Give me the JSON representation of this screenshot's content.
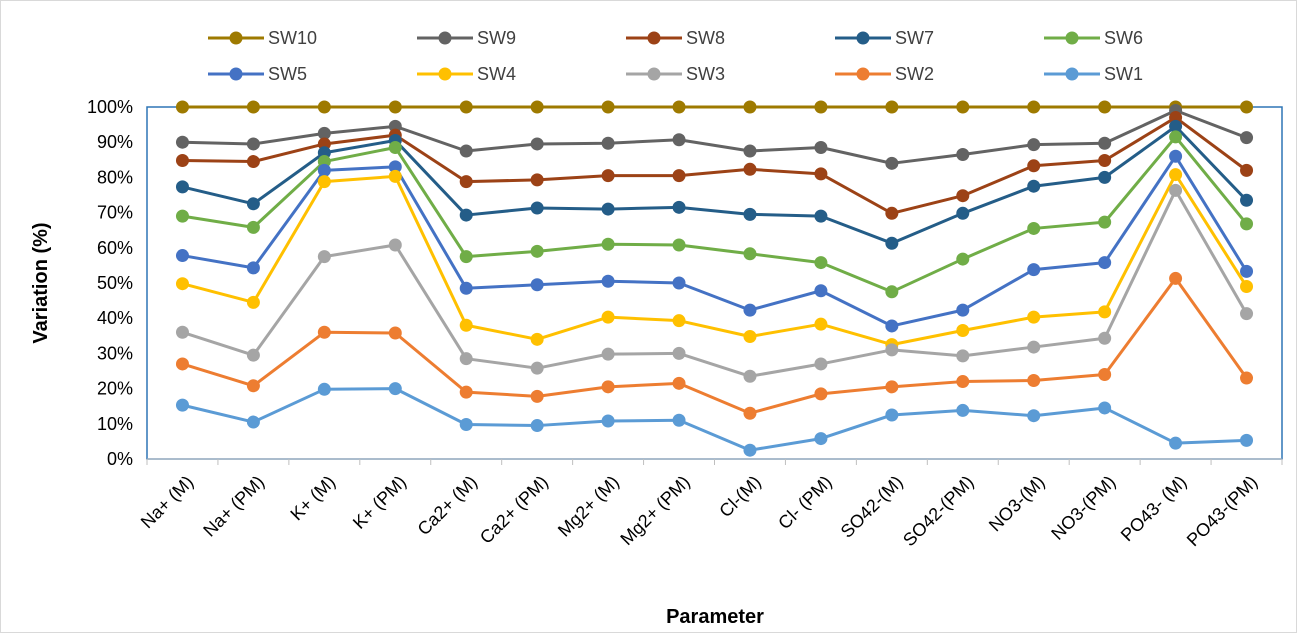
{
  "chart_data": {
    "type": "line",
    "title": "",
    "xlabel": "Parameter",
    "ylabel": "Variation (%)",
    "ylim": [
      0,
      100
    ],
    "yticks": [
      "0%",
      "10%",
      "20%",
      "30%",
      "40%",
      "50%",
      "60%",
      "70%",
      "80%",
      "90%",
      "100%"
    ],
    "grid": false,
    "legend_position": "top",
    "categories": [
      "Na+ (M)",
      "Na+ (PM)",
      "K+ (M)",
      "K+ (PM)",
      "Ca2+ (M)",
      "Ca2+ (PM)",
      "Mg2+ (M)",
      "Mg2+ (PM)",
      "Cl-(M)",
      "Cl- (PM)",
      "SO42-(M)",
      "SO42-(PM)",
      "NO3-(M)",
      "NO3-(PM)",
      "PO43- (M)",
      "PO43-(PM)"
    ],
    "series": [
      {
        "name": "SW10",
        "color": "#9e7a00",
        "values": [
          100,
          100,
          100,
          100,
          100,
          100,
          100,
          100,
          100,
          100,
          100,
          100,
          100,
          100,
          100,
          100
        ]
      },
      {
        "name": "SW9",
        "color": "#636363",
        "values": [
          90,
          89.5,
          92.5,
          94.5,
          87.5,
          89.5,
          89.7,
          90.7,
          87.5,
          88.5,
          84,
          86.5,
          89.3,
          89.7,
          99,
          91.3
        ]
      },
      {
        "name": "SW8",
        "color": "#9c4216",
        "values": [
          84.8,
          84.5,
          89.5,
          92,
          78.8,
          79.3,
          80.5,
          80.5,
          82.3,
          81,
          69.8,
          74.8,
          83.3,
          84.8,
          97,
          82
        ]
      },
      {
        "name": "SW7",
        "color": "#245d88",
        "values": [
          77.3,
          72.5,
          87,
          90.5,
          69.3,
          71.3,
          71,
          71.5,
          69.5,
          69,
          61.3,
          69.8,
          77.5,
          80,
          94.5,
          73.5
        ]
      },
      {
        "name": "SW6",
        "color": "#70ad47",
        "values": [
          69,
          65.8,
          84.5,
          88.5,
          57.5,
          59,
          61,
          60.8,
          58.3,
          55.8,
          47.5,
          56.8,
          65.5,
          67.3,
          91.5,
          66.8
        ]
      },
      {
        "name": "SW5",
        "color": "#4472c4",
        "values": [
          57.8,
          54.3,
          82,
          83,
          48.5,
          49.5,
          50.5,
          50,
          42.3,
          47.8,
          37.8,
          42.3,
          53.8,
          55.8,
          86,
          53.3
        ]
      },
      {
        "name": "SW4",
        "color": "#ffc000",
        "values": [
          49.8,
          44.5,
          78.8,
          80.3,
          38,
          34,
          40.3,
          39.3,
          34.8,
          38.3,
          32.5,
          36.5,
          40.3,
          41.8,
          80.8,
          49
        ]
      },
      {
        "name": "SW3",
        "color": "#a5a5a5",
        "values": [
          36,
          29.5,
          57.5,
          60.8,
          28.5,
          25.8,
          29.8,
          30,
          23.5,
          27,
          31,
          29.3,
          31.8,
          34.3,
          76.3,
          41.3
        ]
      },
      {
        "name": "SW2",
        "color": "#ed7d31",
        "values": [
          27,
          20.8,
          36,
          35.8,
          19,
          17.8,
          20.5,
          21.5,
          13,
          18.5,
          20.5,
          22,
          22.3,
          24,
          51.3,
          23
        ]
      },
      {
        "name": "SW1",
        "color": "#5b9bd5",
        "values": [
          15.3,
          10.5,
          19.8,
          20,
          9.8,
          9.5,
          10.8,
          11,
          2.5,
          5.8,
          12.5,
          13.8,
          12.3,
          14.5,
          4.5,
          5.3
        ]
      }
    ]
  }
}
